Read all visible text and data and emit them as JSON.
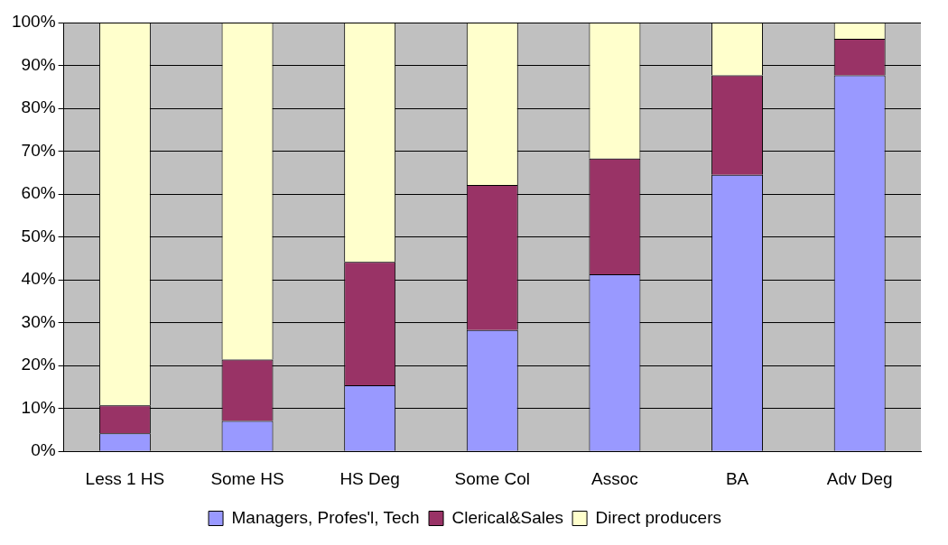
{
  "chart_data": {
    "type": "bar",
    "stacked": true,
    "categories": [
      "Less 1 HS",
      "Some HS",
      "HS Deg",
      "Some Col",
      "Assoc",
      "BA",
      "Adv Deg"
    ],
    "series": [
      {
        "name": "Managers, Profes'l, Tech",
        "color": "#9999ff",
        "values": [
          4.2,
          7.1,
          15.4,
          28.3,
          41.3,
          64.5,
          87.7
        ]
      },
      {
        "name": "Clerical&Sales",
        "color": "#993366",
        "values": [
          6.5,
          14.3,
          28.8,
          33.8,
          27.0,
          23.2,
          8.5
        ]
      },
      {
        "name": "Direct producers",
        "color": "#ffffcc",
        "values": [
          89.3,
          78.6,
          55.8,
          37.9,
          31.7,
          12.3,
          3.8
        ]
      }
    ],
    "ylim": [
      0,
      100
    ],
    "yticks": [
      {
        "value": 0,
        "label": "0%"
      },
      {
        "value": 10,
        "label": "10%"
      },
      {
        "value": 20,
        "label": "20%"
      },
      {
        "value": 30,
        "label": "30%"
      },
      {
        "value": 40,
        "label": "40%"
      },
      {
        "value": 50,
        "label": "50%"
      },
      {
        "value": 60,
        "label": "60%"
      },
      {
        "value": 70,
        "label": "70%"
      },
      {
        "value": 80,
        "label": "80%"
      },
      {
        "value": 90,
        "label": "90%"
      },
      {
        "value": 100,
        "label": "100%"
      }
    ],
    "grid": "y",
    "legend": "bottom"
  }
}
